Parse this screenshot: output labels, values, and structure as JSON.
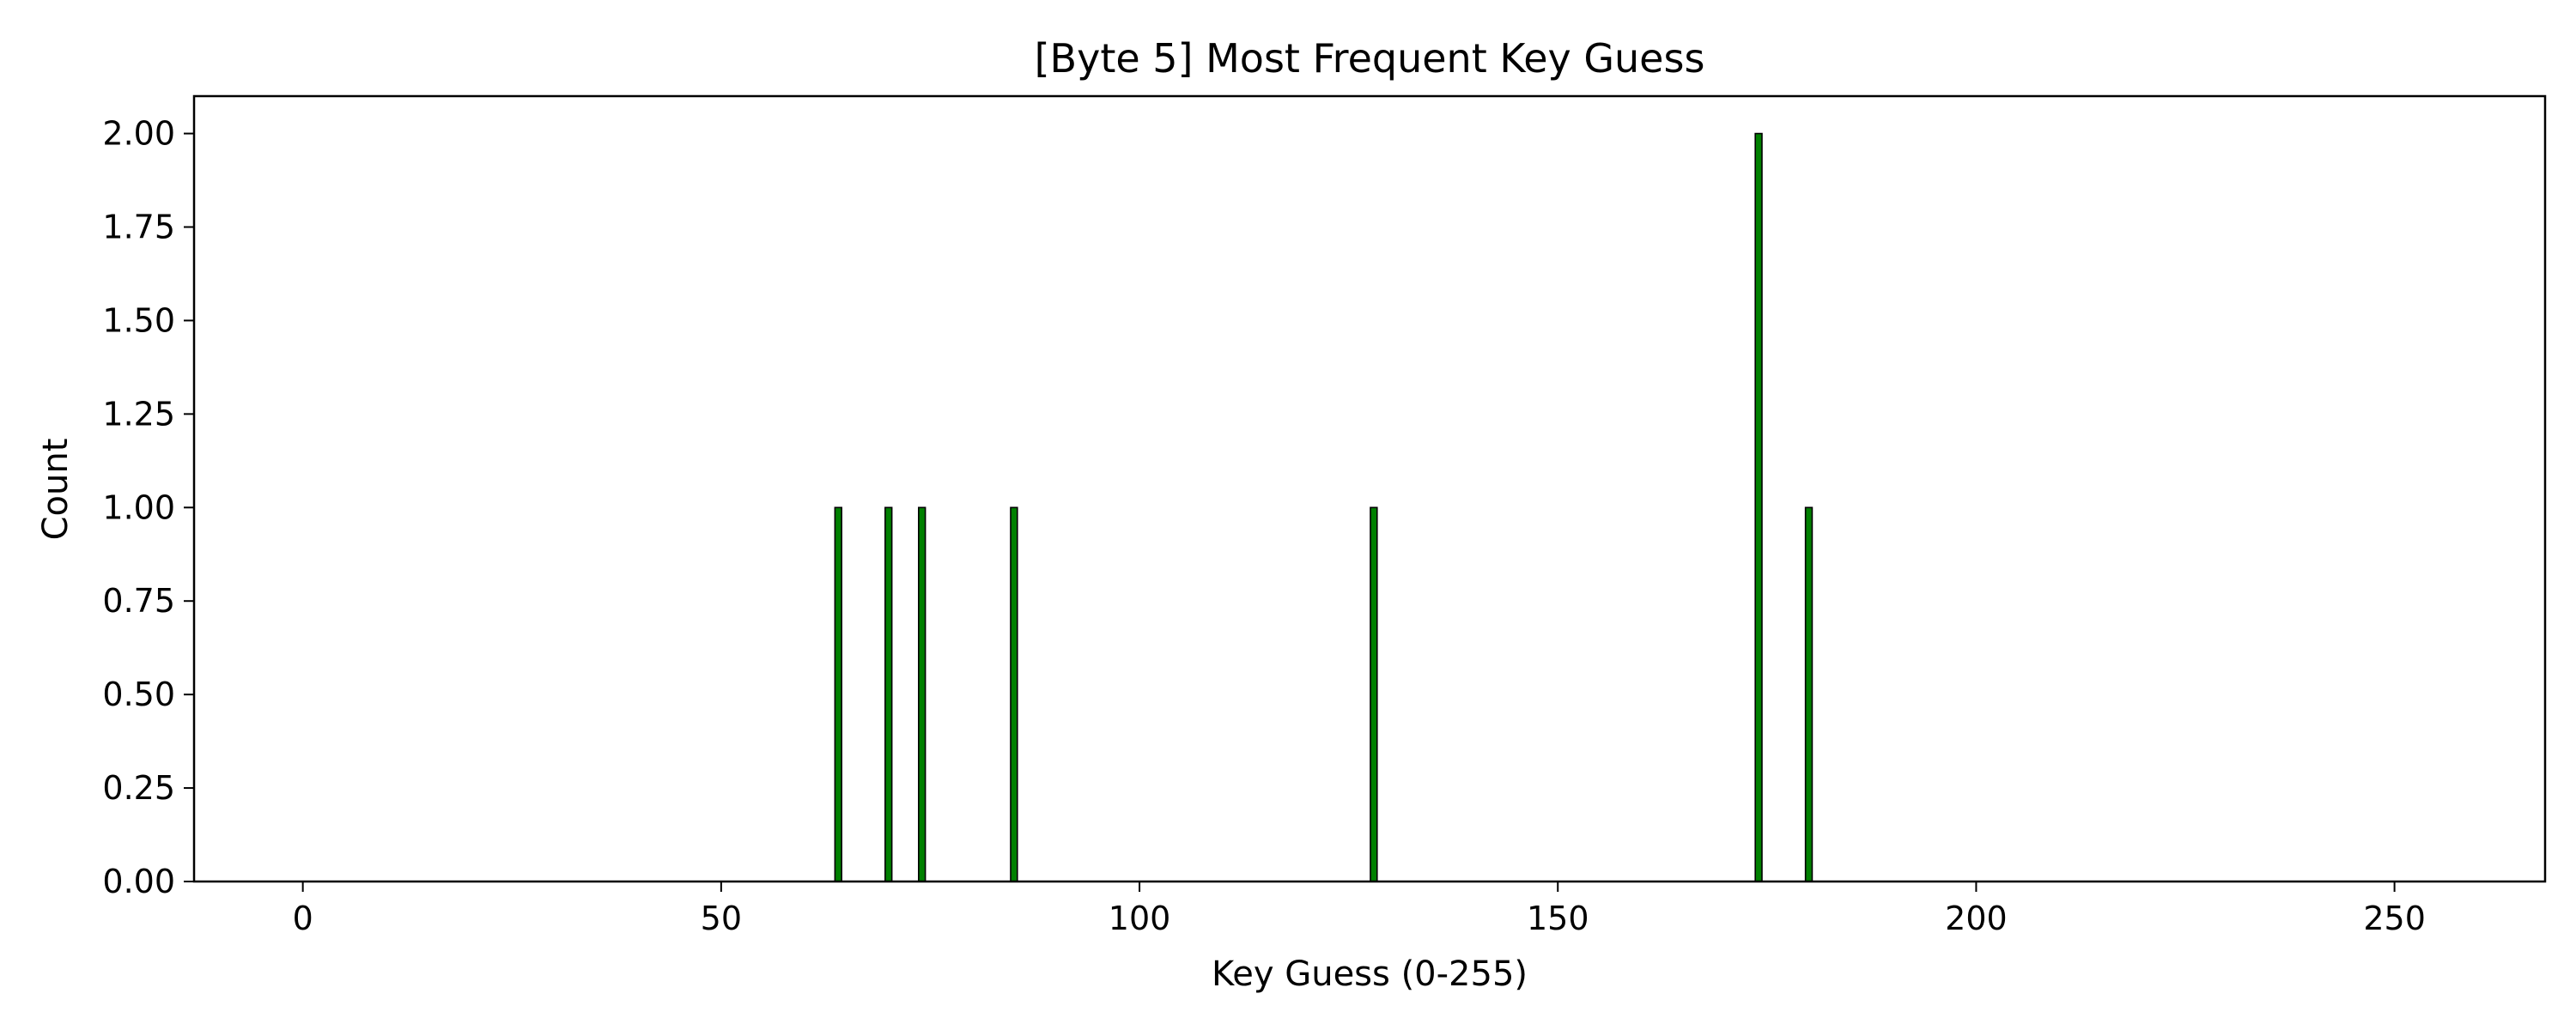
{
  "chart_data": {
    "type": "bar",
    "title": "[Byte 5] Most Frequent Key Guess",
    "xlabel": "Key Guess (0-255)",
    "ylabel": "Count",
    "xlim": [
      -13,
      268
    ],
    "ylim": [
      0,
      2.1
    ],
    "x_ticks": [
      "0",
      "50",
      "100",
      "150",
      "200",
      "250"
    ],
    "y_ticks": [
      "0.00",
      "0.25",
      "0.50",
      "0.75",
      "1.00",
      "1.25",
      "1.50",
      "1.75",
      "2.00"
    ],
    "x_range": [
      0,
      255
    ],
    "points": [
      {
        "x": 64,
        "count": 1
      },
      {
        "x": 70,
        "count": 1
      },
      {
        "x": 74,
        "count": 1
      },
      {
        "x": 85,
        "count": 1
      },
      {
        "x": 128,
        "count": 1
      },
      {
        "x": 174,
        "count": 2
      },
      {
        "x": 180,
        "count": 1
      }
    ],
    "bar_color": "#008000",
    "edge_color": "#000000",
    "grid": false
  }
}
